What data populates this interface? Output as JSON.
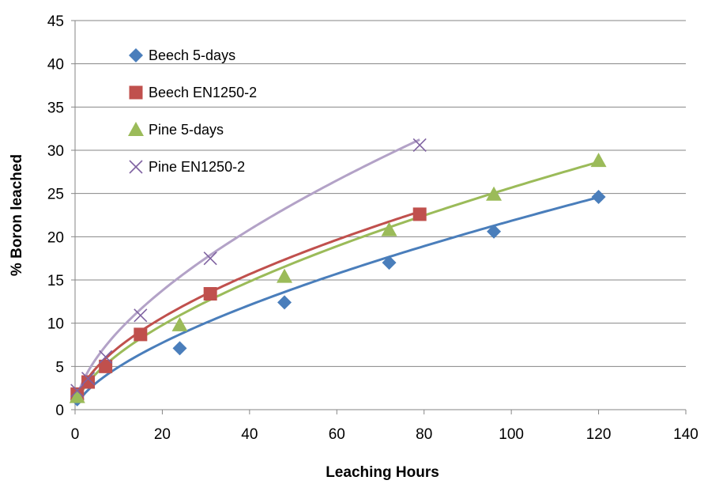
{
  "chart_data": {
    "type": "scatter",
    "title": "",
    "xlabel": "Leaching Hours",
    "ylabel": "% Boron leached",
    "xlim": [
      0,
      140
    ],
    "ylim": [
      0,
      45
    ],
    "xticks": [
      0,
      20,
      40,
      60,
      80,
      100,
      120,
      140
    ],
    "yticks": [
      0,
      5,
      10,
      15,
      20,
      25,
      30,
      35,
      40,
      45
    ],
    "grid": "horizontal",
    "legend_position": "top-left",
    "trendline": "power",
    "series": [
      {
        "name": "Beech 5-days",
        "marker": "diamond",
        "color": "#4A7EBB",
        "line_color": "#4A7EBB",
        "points": [
          [
            0.5,
            1.2
          ],
          [
            24,
            7.1
          ],
          [
            48,
            12.4
          ],
          [
            72,
            17.0
          ],
          [
            96,
            20.6
          ],
          [
            120,
            24.6
          ]
        ],
        "trend": {
          "a": 1.12,
          "b": 0.645
        }
      },
      {
        "name": "Beech EN1250-2",
        "marker": "square",
        "color": "#C0504D",
        "line_color": "#C0504D",
        "points": [
          [
            0.5,
            1.8
          ],
          [
            3,
            3.2
          ],
          [
            7,
            5.0
          ],
          [
            15,
            8.7
          ],
          [
            31,
            13.4
          ],
          [
            79,
            22.6
          ]
        ],
        "trend": {
          "a": 2.0,
          "b": 0.558
        }
      },
      {
        "name": "Pine 5-days",
        "marker": "triangle",
        "color": "#9BBB59",
        "line_color": "#9BBB59",
        "points": [
          [
            0.5,
            1.5
          ],
          [
            24,
            9.8
          ],
          [
            48,
            15.4
          ],
          [
            72,
            20.8
          ],
          [
            96,
            24.9
          ],
          [
            120,
            28.8
          ]
        ],
        "trend": {
          "a": 1.62,
          "b": 0.6
        }
      },
      {
        "name": "Pine EN1250-2",
        "marker": "x",
        "color": "#7F62A1",
        "line_color": "#B3A2C7",
        "points": [
          [
            0.5,
            2.2
          ],
          [
            3,
            3.6
          ],
          [
            7,
            6.1
          ],
          [
            15,
            10.9
          ],
          [
            31,
            17.5
          ],
          [
            79,
            30.6
          ]
        ],
        "trend": {
          "a": 2.31,
          "b": 0.596
        }
      }
    ]
  }
}
